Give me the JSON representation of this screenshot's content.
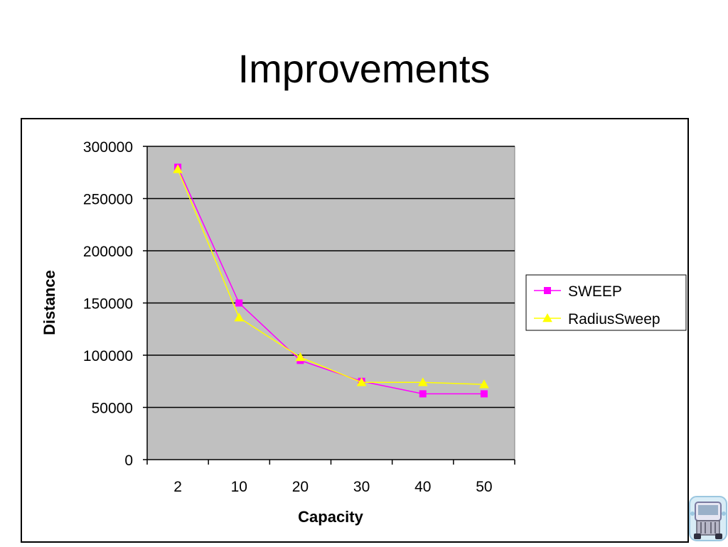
{
  "slide": {
    "title": "Improvements"
  },
  "chart_data": {
    "type": "line",
    "categories": [
      "2",
      "10",
      "20",
      "30",
      "40",
      "50"
    ],
    "xlabel": "Capacity",
    "ylabel": "Distance",
    "ylim": [
      0,
      300000
    ],
    "yticks": [
      0,
      50000,
      100000,
      150000,
      200000,
      250000,
      300000
    ],
    "grid": true,
    "plot_background": "#c0c0c0",
    "legend_position": "right",
    "series": [
      {
        "name": "SWEEP",
        "color": "#ff00ff",
        "marker": "square",
        "values": [
          280000,
          150000,
          95000,
          75000,
          63000,
          63000
        ]
      },
      {
        "name": "RadiusSweep",
        "color": "#ffff00",
        "marker": "triangle",
        "values": [
          278000,
          136000,
          98000,
          74000,
          74000,
          72000
        ]
      }
    ]
  },
  "logo": {
    "icon": "truck-logo-icon"
  }
}
